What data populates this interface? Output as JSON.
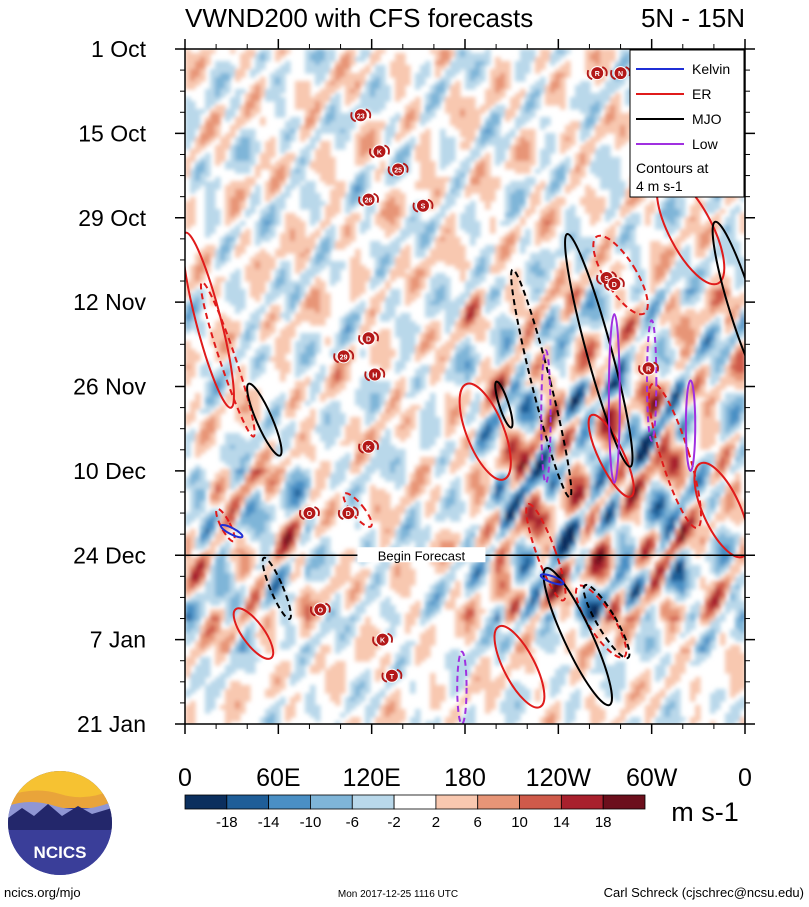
{
  "chart_data": {
    "type": "heatmap",
    "title": "VWND200 with CFS forecasts",
    "region": "5N - 15N",
    "y_ticks": [
      "1 Oct",
      "15 Oct",
      "29 Oct",
      "12 Nov",
      "26 Nov",
      "10 Dec",
      "24 Dec",
      "7 Jan",
      "21 Jan"
    ],
    "x_ticks": [
      "0",
      "60E",
      "120E",
      "180",
      "120W",
      "60W",
      "0"
    ],
    "x_range": [
      0,
      360
    ],
    "y_range_days": [
      0,
      112
    ],
    "forecast_start_day": 84,
    "forecast_label": "Begin Forecast",
    "colorbar": {
      "units": "m s-1",
      "tick_labels": [
        "-18",
        "-14",
        "-10",
        "-6",
        "-2",
        "2",
        "6",
        "10",
        "14",
        "18"
      ],
      "colors": [
        "#0b2f5e",
        "#1f5e98",
        "#4a8fc4",
        "#7fb5d8",
        "#b9d8ea",
        "#ffffff",
        "#f8c8b0",
        "#e79577",
        "#cf5a4a",
        "#a8202d",
        "#6c0f1c"
      ]
    },
    "legend": {
      "entries": [
        {
          "label": "Kelvin",
          "color": "#1f2fd6"
        },
        {
          "label": "ER",
          "color": "#e01b1b"
        },
        {
          "label": "MJO",
          "color": "#000000"
        },
        {
          "label": "Low",
          "color": "#a030e0"
        }
      ],
      "note_line1": "Contours at",
      "note_line2": "4 m s-1",
      "position": "top-right"
    },
    "storms": [
      {
        "label": "R",
        "lon": 265,
        "day": 4
      },
      {
        "label": "N",
        "lon": 280,
        "day": 4
      },
      {
        "label": "23",
        "lon": 113,
        "day": 11
      },
      {
        "label": "K",
        "lon": 125,
        "day": 17
      },
      {
        "label": "25",
        "lon": 137,
        "day": 20
      },
      {
        "label": "26",
        "lon": 118,
        "day": 25
      },
      {
        "label": "S",
        "lon": 153,
        "day": 26
      },
      {
        "label": "S",
        "lon": 271,
        "day": 38
      },
      {
        "label": "D",
        "lon": 276,
        "day": 39
      },
      {
        "label": "D",
        "lon": 118,
        "day": 48
      },
      {
        "label": "29",
        "lon": 102,
        "day": 51
      },
      {
        "label": "H",
        "lon": 122,
        "day": 54
      },
      {
        "label": "R",
        "lon": 298,
        "day": 53
      },
      {
        "label": "K",
        "lon": 118,
        "day": 66
      },
      {
        "label": "O",
        "lon": 80,
        "day": 77
      },
      {
        "label": "D",
        "lon": 105,
        "day": 77
      },
      {
        "label": "O",
        "lon": 87,
        "day": 93
      },
      {
        "label": "K",
        "lon": 127,
        "day": 98
      },
      {
        "label": "T",
        "lon": 133,
        "day": 104
      }
    ]
  },
  "footer": {
    "logo_text": "NCICS",
    "website": "ncics.org/mjo",
    "timestamp": "Mon 2017-12-25 1116 UTC",
    "author": "Carl Schreck (cjschrec@ncsu.edu)"
  }
}
